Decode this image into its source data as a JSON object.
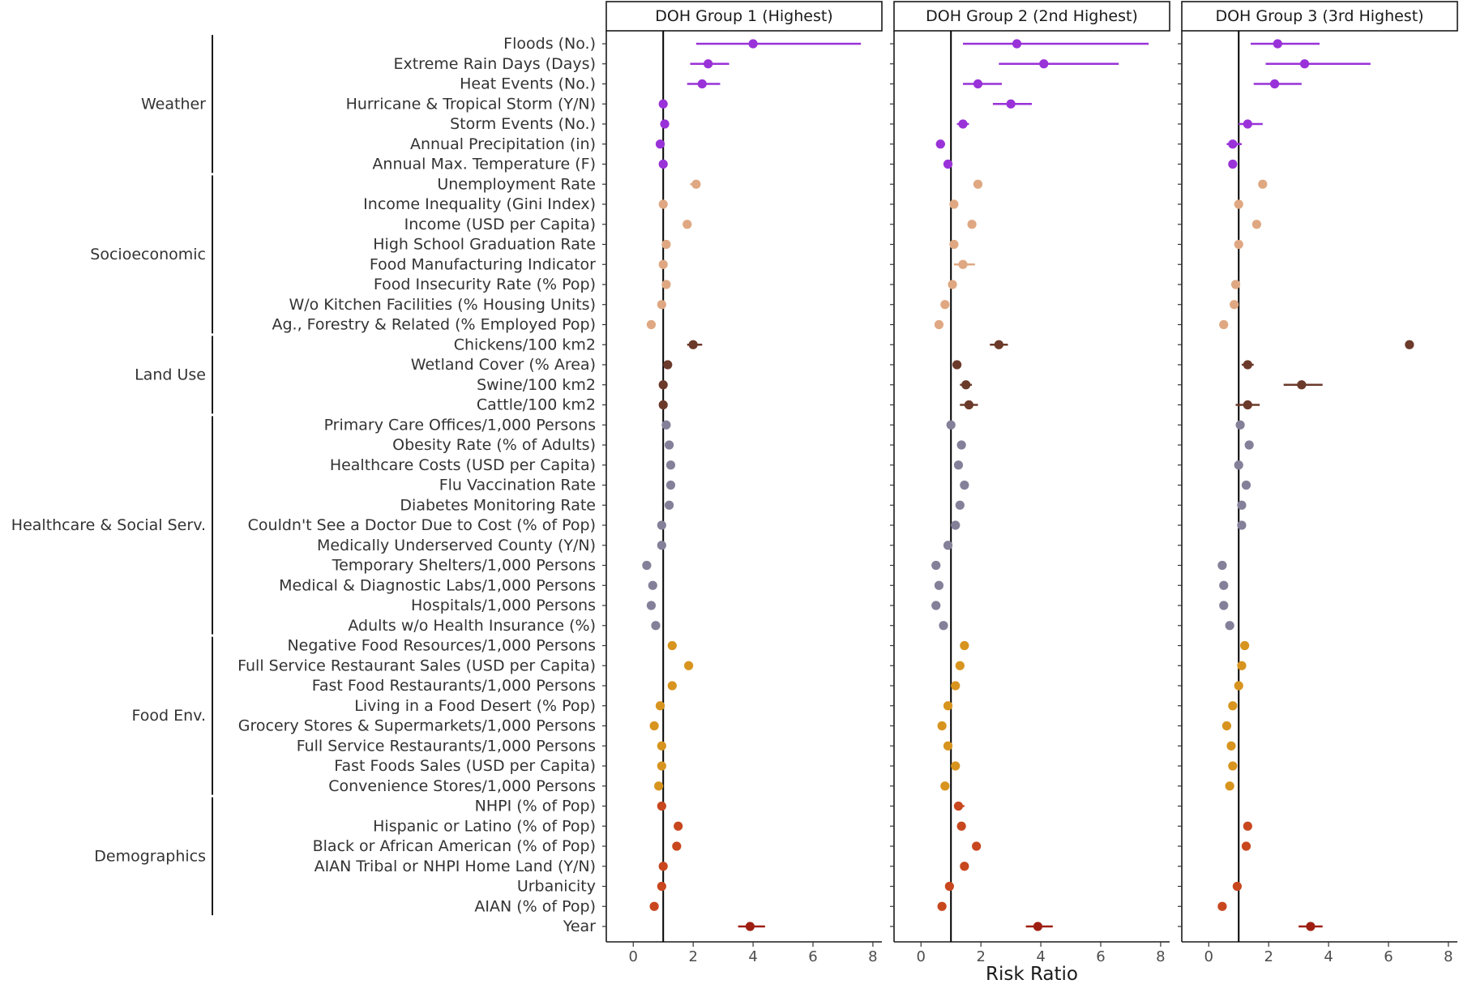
{
  "chart_data": {
    "type": "scatter",
    "subtype": "forest-plot (point estimate with confidence interval)",
    "xlabel": "Risk Ratio",
    "xlim": [
      -0.9,
      8.3
    ],
    "xticks": [
      0,
      2,
      4,
      6,
      8
    ],
    "reference_line": 1,
    "grid": false,
    "legend": "none",
    "panels": [
      {
        "title": "DOH Group 1 (Highest)"
      },
      {
        "title": "DOH Group 2 (2nd Highest)"
      },
      {
        "title": "DOH Group 3 (3rd Highest)"
      }
    ],
    "groups": [
      {
        "name": "Weather",
        "color": "#9932d8"
      },
      {
        "name": "Socioeconomic",
        "color": "#dfa882"
      },
      {
        "name": "Land Use",
        "color": "#6b3a2a"
      },
      {
        "name": "Healthcare & Social Serv.",
        "color": "#848099"
      },
      {
        "name": "Food Env.",
        "color": "#d7941f"
      },
      {
        "name": "Demographics",
        "color": "#c8471e"
      },
      {
        "name": "",
        "color": "#9e1f12"
      }
    ],
    "series": [
      {
        "variable": "Floods (No.)",
        "group": 0,
        "values": [
          [
            4.0,
            2.1,
            7.6
          ],
          [
            3.2,
            1.4,
            7.6
          ],
          [
            2.3,
            1.4,
            3.7
          ]
        ]
      },
      {
        "variable": "Extreme Rain Days (Days)",
        "group": 0,
        "values": [
          [
            2.5,
            1.9,
            3.2
          ],
          [
            4.1,
            2.6,
            6.6
          ],
          [
            3.2,
            1.9,
            5.4
          ]
        ]
      },
      {
        "variable": "Heat Events  (No.)",
        "group": 0,
        "values": [
          [
            2.3,
            1.8,
            2.9
          ],
          [
            1.9,
            1.4,
            2.7
          ],
          [
            2.2,
            1.5,
            3.1
          ]
        ]
      },
      {
        "variable": "Hurricane & Tropical Storm (Y/N)",
        "group": 0,
        "values": [
          [
            1.0,
            0.95,
            1.05
          ],
          [
            3.0,
            2.4,
            3.7
          ],
          [
            null,
            null,
            null
          ]
        ]
      },
      {
        "variable": "Storm Events (No.)",
        "group": 0,
        "values": [
          [
            1.05,
            0.95,
            1.15
          ],
          [
            1.4,
            1.2,
            1.6
          ],
          [
            1.3,
            1.0,
            1.8
          ]
        ]
      },
      {
        "variable": "Annual Precipitation (in)",
        "group": 0,
        "values": [
          [
            0.9,
            0.8,
            1.0
          ],
          [
            0.65,
            0.5,
            0.8
          ],
          [
            0.8,
            0.6,
            1.1
          ]
        ]
      },
      {
        "variable": "Annual Max. Temperature (F)",
        "group": 0,
        "values": [
          [
            1.0,
            0.95,
            1.05
          ],
          [
            0.9,
            0.85,
            0.95
          ],
          [
            0.8,
            0.7,
            0.9
          ]
        ]
      },
      {
        "variable": "Unemployment Rate",
        "group": 1,
        "values": [
          [
            2.1,
            1.9,
            2.2
          ],
          [
            1.9,
            1.75,
            2.0
          ],
          [
            1.8,
            1.7,
            1.9
          ]
        ]
      },
      {
        "variable": "Income Inequality (Gini Index)",
        "group": 1,
        "values": [
          [
            1.0,
            0.95,
            1.05
          ],
          [
            1.1,
            1.05,
            1.15
          ],
          [
            1.0,
            0.95,
            1.05
          ]
        ]
      },
      {
        "variable": "Income (USD per Capita)",
        "group": 1,
        "values": [
          [
            1.8,
            1.7,
            1.9
          ],
          [
            1.7,
            1.6,
            1.8
          ],
          [
            1.6,
            1.5,
            1.7
          ]
        ]
      },
      {
        "variable": "High School Graduation Rate",
        "group": 1,
        "values": [
          [
            1.1,
            1.05,
            1.15
          ],
          [
            1.1,
            1.05,
            1.15
          ],
          [
            1.0,
            0.95,
            1.05
          ]
        ]
      },
      {
        "variable": "Food Manufacturing Indicator",
        "group": 1,
        "values": [
          [
            1.0,
            0.95,
            1.05
          ],
          [
            1.4,
            1.1,
            1.8
          ],
          [
            null,
            null,
            null
          ]
        ]
      },
      {
        "variable": "Food Insecurity Rate (% Pop)",
        "group": 1,
        "values": [
          [
            1.1,
            1.05,
            1.15
          ],
          [
            1.05,
            1.0,
            1.1
          ],
          [
            0.9,
            0.85,
            0.95
          ]
        ]
      },
      {
        "variable": "W/o Kitchen Facilities (% Housing Units)",
        "group": 1,
        "values": [
          [
            0.95,
            0.9,
            1.0
          ],
          [
            0.8,
            0.75,
            0.85
          ],
          [
            0.85,
            0.8,
            0.9
          ]
        ]
      },
      {
        "variable": "Ag., Forestry & Related (% Employed Pop)",
        "group": 1,
        "values": [
          [
            0.6,
            0.55,
            0.65
          ],
          [
            0.6,
            0.55,
            0.65
          ],
          [
            0.5,
            0.45,
            0.55
          ]
        ]
      },
      {
        "variable": "Chickens/100 km2",
        "group": 2,
        "values": [
          [
            2.0,
            1.8,
            2.3
          ],
          [
            2.6,
            2.3,
            2.9
          ],
          [
            6.7,
            6.6,
            6.8
          ]
        ]
      },
      {
        "variable": "Wetland Cover (% Area)",
        "group": 2,
        "values": [
          [
            1.15,
            1.05,
            1.25
          ],
          [
            1.2,
            1.1,
            1.3
          ],
          [
            1.3,
            1.1,
            1.5
          ]
        ]
      },
      {
        "variable": "Swine/100 km2",
        "group": 2,
        "values": [
          [
            1.0,
            0.95,
            1.05
          ],
          [
            1.5,
            1.3,
            1.7
          ],
          [
            3.1,
            2.5,
            3.8
          ]
        ]
      },
      {
        "variable": "Cattle/100 km2",
        "group": 2,
        "values": [
          [
            1.0,
            0.95,
            1.05
          ],
          [
            1.6,
            1.3,
            1.9
          ],
          [
            1.3,
            0.9,
            1.7
          ]
        ]
      },
      {
        "variable": "Primary Care Offices/1,000 Persons",
        "group": 3,
        "values": [
          [
            1.1,
            1.05,
            1.15
          ],
          [
            1.0,
            0.95,
            1.05
          ],
          [
            1.05,
            1.0,
            1.1
          ]
        ]
      },
      {
        "variable": "Obesity Rate (% of Adults)",
        "group": 3,
        "values": [
          [
            1.2,
            1.15,
            1.25
          ],
          [
            1.35,
            1.3,
            1.4
          ],
          [
            1.35,
            1.3,
            1.4
          ]
        ]
      },
      {
        "variable": "Healthcare Costs (USD per Capita)",
        "group": 3,
        "values": [
          [
            1.25,
            1.2,
            1.3
          ],
          [
            1.25,
            1.2,
            1.3
          ],
          [
            1.0,
            0.95,
            1.05
          ]
        ]
      },
      {
        "variable": "Flu Vaccination Rate",
        "group": 3,
        "values": [
          [
            1.25,
            1.2,
            1.3
          ],
          [
            1.45,
            1.4,
            1.5
          ],
          [
            1.25,
            1.2,
            1.3
          ]
        ]
      },
      {
        "variable": "Diabetes Monitoring Rate",
        "group": 3,
        "values": [
          [
            1.2,
            1.15,
            1.25
          ],
          [
            1.3,
            1.25,
            1.35
          ],
          [
            1.1,
            1.05,
            1.15
          ]
        ]
      },
      {
        "variable": "Couldn't See a Doctor Due to Cost (% of Pop)",
        "group": 3,
        "values": [
          [
            0.95,
            0.9,
            1.0
          ],
          [
            1.15,
            1.1,
            1.2
          ],
          [
            1.1,
            1.05,
            1.15
          ]
        ]
      },
      {
        "variable": "Medically Underserved County  (Y/N)",
        "group": 3,
        "values": [
          [
            0.95,
            0.9,
            1.0
          ],
          [
            0.9,
            0.85,
            0.95
          ],
          [
            null,
            null,
            null
          ]
        ]
      },
      {
        "variable": "Temporary Shelters/1,000 Persons",
        "group": 3,
        "values": [
          [
            0.45,
            0.4,
            0.5
          ],
          [
            0.5,
            0.45,
            0.55
          ],
          [
            0.45,
            0.4,
            0.5
          ]
        ]
      },
      {
        "variable": "Medical & Diagnostic Labs/1,000 Persons",
        "group": 3,
        "values": [
          [
            0.65,
            0.6,
            0.7
          ],
          [
            0.6,
            0.55,
            0.65
          ],
          [
            0.5,
            0.45,
            0.55
          ]
        ]
      },
      {
        "variable": "Hospitals/1,000 Persons",
        "group": 3,
        "values": [
          [
            0.6,
            0.55,
            0.65
          ],
          [
            0.5,
            0.45,
            0.55
          ],
          [
            0.5,
            0.45,
            0.55
          ]
        ]
      },
      {
        "variable": "Adults w/o Health Insurance (%)",
        "group": 3,
        "values": [
          [
            0.75,
            0.7,
            0.8
          ],
          [
            0.75,
            0.7,
            0.8
          ],
          [
            0.7,
            0.65,
            0.75
          ]
        ]
      },
      {
        "variable": "Negative Food Resources/1,000 Persons",
        "group": 4,
        "values": [
          [
            1.3,
            1.25,
            1.35
          ],
          [
            1.45,
            1.4,
            1.5
          ],
          [
            1.2,
            1.15,
            1.25
          ]
        ]
      },
      {
        "variable": "Full Service Restaurant Sales (USD per Capita)",
        "group": 4,
        "values": [
          [
            1.85,
            1.75,
            1.95
          ],
          [
            1.3,
            1.25,
            1.35
          ],
          [
            1.1,
            1.05,
            1.15
          ]
        ]
      },
      {
        "variable": "Fast Food Restaurants/1,000 Persons",
        "group": 4,
        "values": [
          [
            1.3,
            1.25,
            1.35
          ],
          [
            1.15,
            1.1,
            1.2
          ],
          [
            1.0,
            0.95,
            1.05
          ]
        ]
      },
      {
        "variable": "Living in a Food Desert (% Pop)",
        "group": 4,
        "values": [
          [
            0.9,
            0.85,
            0.95
          ],
          [
            0.9,
            0.85,
            0.95
          ],
          [
            0.8,
            0.75,
            0.85
          ]
        ]
      },
      {
        "variable": "Grocery Stores & Supermarkets/1,000 Persons",
        "group": 4,
        "values": [
          [
            0.7,
            0.65,
            0.75
          ],
          [
            0.7,
            0.65,
            0.75
          ],
          [
            0.6,
            0.55,
            0.65
          ]
        ]
      },
      {
        "variable": "Full Service Restaurants/1,000 Persons",
        "group": 4,
        "values": [
          [
            0.95,
            0.9,
            1.0
          ],
          [
            0.9,
            0.85,
            0.95
          ],
          [
            0.75,
            0.7,
            0.8
          ]
        ]
      },
      {
        "variable": "Fast Foods Sales (USD per Capita)",
        "group": 4,
        "values": [
          [
            0.95,
            0.9,
            1.0
          ],
          [
            1.15,
            1.1,
            1.2
          ],
          [
            0.8,
            0.75,
            0.85
          ]
        ]
      },
      {
        "variable": "Convenience Stores/1,000 Persons",
        "group": 4,
        "values": [
          [
            0.85,
            0.8,
            0.9
          ],
          [
            0.8,
            0.75,
            0.85
          ],
          [
            0.7,
            0.65,
            0.75
          ]
        ]
      },
      {
        "variable": "NHPI (% of Pop)",
        "group": 5,
        "values": [
          [
            0.95,
            0.9,
            1.0
          ],
          [
            1.25,
            1.1,
            1.45
          ],
          [
            null,
            null,
            null
          ]
        ]
      },
      {
        "variable": "Hispanic or Latino (% of Pop)",
        "group": 5,
        "values": [
          [
            1.5,
            1.45,
            1.55
          ],
          [
            1.35,
            1.3,
            1.4
          ],
          [
            1.3,
            1.25,
            1.35
          ]
        ]
      },
      {
        "variable": "Black or African American (% of Pop)",
        "group": 5,
        "values": [
          [
            1.45,
            1.4,
            1.5
          ],
          [
            1.85,
            1.75,
            1.95
          ],
          [
            1.25,
            1.2,
            1.3
          ]
        ]
      },
      {
        "variable": "AIAN Tribal or NHPI Home Land  (Y/N)",
        "group": 5,
        "values": [
          [
            1.0,
            0.95,
            1.05
          ],
          [
            1.45,
            1.4,
            1.5
          ],
          [
            null,
            null,
            null
          ]
        ]
      },
      {
        "variable": "Urbanicity",
        "group": 5,
        "values": [
          [
            0.95,
            0.9,
            1.0
          ],
          [
            0.95,
            0.9,
            1.0
          ],
          [
            0.95,
            0.9,
            1.0
          ]
        ]
      },
      {
        "variable": "AIAN (% of Pop)",
        "group": 5,
        "values": [
          [
            0.7,
            0.65,
            0.75
          ],
          [
            0.7,
            0.65,
            0.75
          ],
          [
            0.45,
            0.4,
            0.5
          ]
        ]
      },
      {
        "variable": "Year",
        "group": 6,
        "values": [
          [
            3.9,
            3.5,
            4.4
          ],
          [
            3.9,
            3.5,
            4.4
          ],
          [
            3.4,
            3.0,
            3.8
          ]
        ]
      }
    ],
    "group_brackets": [
      {
        "label": "Weather",
        "from": 0,
        "to": 6
      },
      {
        "label": "Socioeconomic",
        "from": 7,
        "to": 14
      },
      {
        "label": "Land Use",
        "from": 15,
        "to": 18
      },
      {
        "label": "Healthcare & Social Serv.",
        "from": 19,
        "to": 29
      },
      {
        "label": "Food Env.",
        "from": 30,
        "to": 37
      },
      {
        "label": "Demographics",
        "from": 38,
        "to": 43
      }
    ]
  }
}
